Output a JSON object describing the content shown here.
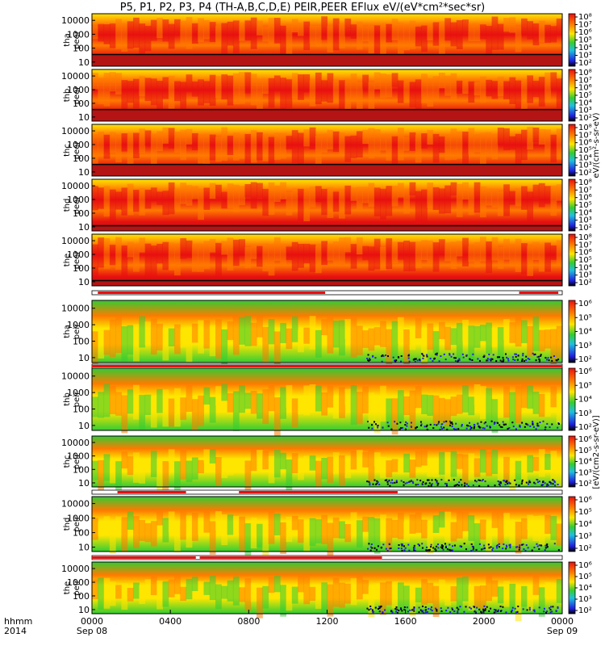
{
  "title": "P5, P1, P2, P3, P4 (TH-A,B,C,D,E) PEIR,PEER EFlux eV/(eV*cm²*sec*sr)",
  "colors": {
    "dark_red": "#b41414",
    "red": "#e81010",
    "orange": "#ff7a00",
    "yellow": "#ffe600",
    "green": "#33cc33",
    "cyan": "#20c0e0",
    "blue": "#2020e0",
    "black": "#000000"
  },
  "chart_data": {
    "type": "heatmap",
    "x_unit": "hhmm",
    "x_start": "2014-09-08 00:00",
    "x_end": "2014-09-09 00:00",
    "x_tick_labels": [
      {
        "t": 0,
        "line1": "0000",
        "line2": "Sep 08"
      },
      {
        "t": 4,
        "line1": "0400",
        "line2": ""
      },
      {
        "t": 8,
        "line1": "0800",
        "line2": ""
      },
      {
        "t": 12,
        "line1": "1200",
        "line2": ""
      },
      {
        "t": 16,
        "line1": "1600",
        "line2": ""
      },
      {
        "t": 20,
        "line1": "2000",
        "line2": ""
      },
      {
        "t": 24,
        "line1": "0000",
        "line2": "Sep 09"
      }
    ],
    "x_label_line1": "hhmm",
    "x_label_line2": "2014",
    "y_scale": "log",
    "y_range_eV": [
      5,
      30000
    ],
    "y_ticks": [
      "10",
      "100",
      "1000",
      "10000"
    ],
    "colorbar_peer_label": "eV/(cm²-s-sr-eV)",
    "colorbar_peir_label": "[eV/(cm2-s-sr-eV)]",
    "panels": [
      {
        "name": "tha peer",
        "label1": "tha",
        "label2": "peer",
        "species": "electron",
        "cb_ticks": [
          "10²",
          "10³",
          "10⁴",
          "10⁵",
          "10⁶",
          "10⁷",
          "10⁸"
        ]
      },
      {
        "name": "thb peer",
        "label1": "thb",
        "label2": "peer",
        "species": "electron",
        "cb_ticks": [
          "10²",
          "10³",
          "10⁴",
          "10⁵",
          "10⁶",
          "10⁷",
          "10⁸"
        ]
      },
      {
        "name": "thc peer",
        "label1": "thc",
        "label2": "peer",
        "species": "electron",
        "cb_ticks": [
          "10²",
          "10³",
          "10⁴",
          "10⁵",
          "10⁶",
          "10⁷",
          "10⁸"
        ]
      },
      {
        "name": "thd peer",
        "label1": "thd",
        "label2": "peer",
        "species": "electron",
        "cb_ticks": [
          "10²",
          "10³",
          "10⁴",
          "10⁵",
          "10⁶",
          "10⁷",
          "10⁸"
        ]
      },
      {
        "name": "the peer",
        "label1": "the",
        "label2": "peer",
        "species": "electron",
        "cb_ticks": [
          "10²",
          "10³",
          "10⁴",
          "10⁵",
          "10⁶",
          "10⁷",
          "10⁸"
        ]
      },
      {
        "name": "tha peir",
        "label1": "tha",
        "label2": "peir",
        "species": "ion",
        "cb_ticks": [
          "10²",
          "10³",
          "10⁴",
          "10⁵",
          "10⁶"
        ]
      },
      {
        "name": "thb peir",
        "label1": "thb",
        "label2": "peir",
        "species": "ion",
        "cb_ticks": [
          "10²",
          "10³",
          "10⁴",
          "10⁵",
          "10⁶"
        ]
      },
      {
        "name": "thc peir",
        "label1": "thc",
        "label2": "peir",
        "species": "ion",
        "cb_ticks": [
          "10²",
          "10³",
          "10⁴",
          "10⁵",
          "10⁶"
        ]
      },
      {
        "name": "thd peir",
        "label1": "thd",
        "label2": "peir",
        "species": "ion",
        "cb_ticks": [
          "10²",
          "10³",
          "10⁴",
          "10⁵",
          "10⁶"
        ]
      },
      {
        "name": "the peir",
        "label1": "the",
        "label2": "peir",
        "species": "ion",
        "cb_ticks": [
          "10²",
          "10³",
          "10⁴",
          "10⁵",
          "10⁶"
        ]
      }
    ],
    "mode_bars": [
      {
        "after_panel": "the peer",
        "red_hours": [
          [
            0.3,
            11.9
          ],
          [
            21.8,
            23.8
          ]
        ]
      },
      {
        "after_panel": "tha peir",
        "red_hours": [
          [
            0,
            24
          ]
        ]
      },
      {
        "after_panel": "thc peir",
        "red_hours": [
          [
            1.3,
            4.8
          ],
          [
            7.5,
            15.6
          ]
        ]
      },
      {
        "after_panel": "thd peir",
        "red_hours": [
          [
            0,
            5.3
          ],
          [
            5.5,
            14.8
          ]
        ]
      }
    ]
  }
}
